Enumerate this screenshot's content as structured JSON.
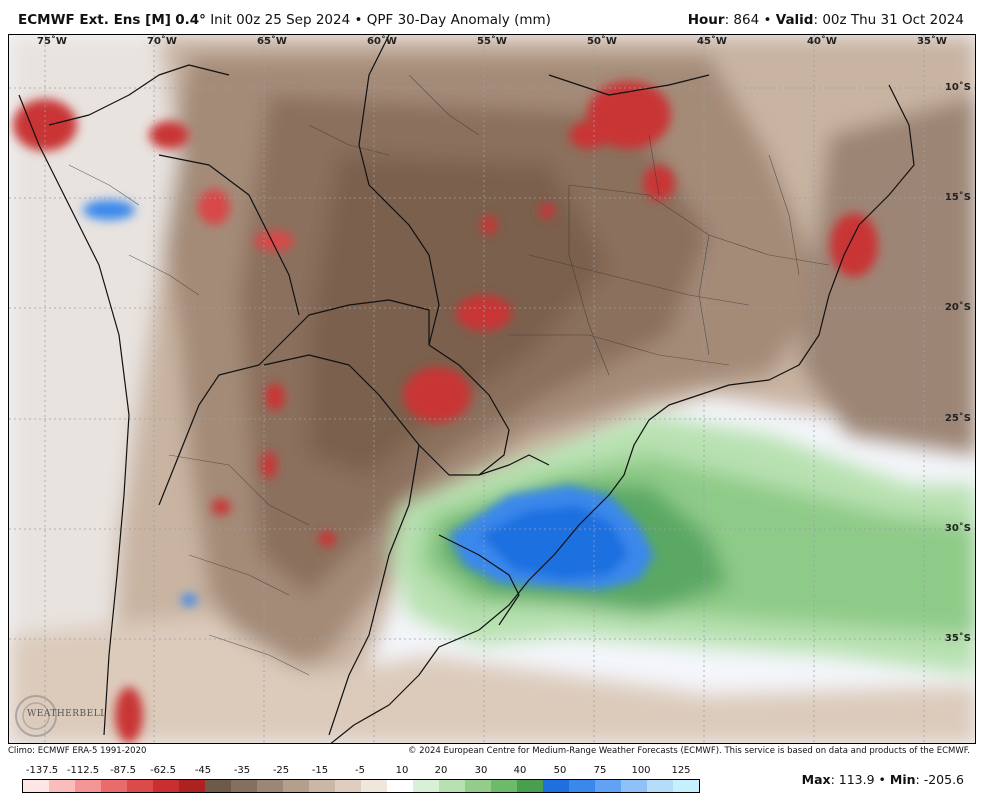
{
  "header": {
    "model": "ECMWF Ext. Ens [M]",
    "resolution": "0.4°",
    "init": "Init 00z 25 Sep 2024",
    "separator": "•",
    "product": "QPF 30-Day Anomaly (mm)",
    "hour_label": "Hour",
    "hour_value": ": 864",
    "valid_label": "Valid",
    "valid_value": ": 00z Thu 31 Oct 2024"
  },
  "map": {
    "lon_labels": [
      "75˚W",
      "70˚W",
      "65˚W",
      "60˚W",
      "55˚W",
      "50˚W",
      "45˚W",
      "40˚W",
      "35˚W"
    ],
    "lat_labels": [
      "10˚S",
      "15˚S",
      "20˚S",
      "25˚S",
      "30˚S",
      "35˚S"
    ],
    "logo_text": "WEATHERBELL"
  },
  "footer": {
    "climo": "Climo: ECMWF ERA-5 1991-2020",
    "copyright": "© 2024 European Centre for Medium-Range Weather Forecasts (ECMWF). This service is based on data and products of the ECMWF."
  },
  "colorbar": {
    "labels": [
      "-137.5",
      "-112.5",
      "-87.5",
      "-62.5",
      "-45",
      "-35",
      "-25",
      "-15",
      "-5",
      "10",
      "20",
      "30",
      "40",
      "50",
      "75",
      "100",
      "125"
    ],
    "colors": [
      "#ffe6e6",
      "#fbbcbc",
      "#f49494",
      "#ea6b6b",
      "#dd4a4a",
      "#c92f2f",
      "#ad2121",
      "#6e5a48",
      "#857060",
      "#9c8776",
      "#b49f8d",
      "#cbb7a5",
      "#dfcebf",
      "#f0e6dc",
      "#ffffff",
      "#d8f0d5",
      "#b7e1b0",
      "#93cd8c",
      "#6dba6a",
      "#4a9f4f",
      "#1f6fe0",
      "#3a88ec",
      "#61a2f2",
      "#8ec2f6",
      "#b5dcf8",
      "#c6f0fb"
    ]
  },
  "stats": {
    "max_label": "Max",
    "max_value": ": 113.9",
    "sep": "•",
    "min_label": "Min",
    "min_value": ": -205.6"
  }
}
